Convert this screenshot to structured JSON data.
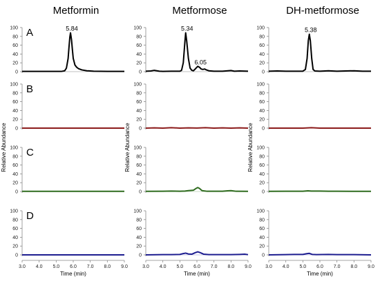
{
  "chart_data": {
    "type": "line",
    "columns": [
      "Metformin",
      "Metformose",
      "DH-metformose"
    ],
    "rows": [
      "A",
      "B",
      "C",
      "D"
    ],
    "ylabel": "Relative Abundance",
    "xlabel": "Time (min)",
    "xlim": [
      3.0,
      9.0
    ],
    "ylim": [
      0,
      100
    ],
    "x_ticks": [
      "3.0",
      "4.0",
      "5.0",
      "6.0",
      "7.0",
      "8.0",
      "9.0"
    ],
    "y_ticks": [
      "0",
      "20",
      "40",
      "60",
      "80",
      "100"
    ],
    "row_colors": [
      "#000000",
      "#8b1a1a",
      "#2e6b1e",
      "#1c1c8f"
    ],
    "baseline_colors": [
      "#000000",
      "#8b1a1a",
      "#2e6b1e",
      "#1c1c8f"
    ],
    "annotations": [
      {
        "row": 0,
        "col": 0,
        "label": "5.84",
        "x": 5.84,
        "y": 88
      },
      {
        "row": 0,
        "col": 1,
        "label": "5.34",
        "x": 5.34,
        "y": 88
      },
      {
        "row": 0,
        "col": 1,
        "label": "6.05",
        "x": 6.05,
        "y": 12
      },
      {
        "row": 0,
        "col": 2,
        "label": "5.38",
        "x": 5.38,
        "y": 85
      }
    ],
    "panels": [
      [
        {
          "x": [
            3.0,
            5.3,
            5.5,
            5.6,
            5.7,
            5.75,
            5.8,
            5.84,
            5.9,
            5.95,
            6.0,
            6.1,
            6.2,
            6.3,
            6.5,
            6.8,
            7.2,
            8.0,
            9.0
          ],
          "y": [
            0.5,
            0.5,
            2,
            8,
            30,
            55,
            78,
            88,
            72,
            50,
            30,
            15,
            10,
            7,
            4,
            2,
            1,
            0.5,
            0.5
          ]
        },
        {
          "x": [
            3.0,
            3.3,
            3.5,
            3.8,
            4.0,
            4.5,
            5.0,
            5.1,
            5.2,
            5.3,
            5.34,
            5.4,
            5.5,
            5.6,
            5.7,
            5.8,
            5.9,
            6.0,
            6.05,
            6.15,
            6.25,
            6.35,
            6.45,
            6.55,
            6.7,
            7.0,
            7.5,
            8.0,
            8.2,
            8.5,
            9.0
          ],
          "y": [
            1,
            1.5,
            3,
            1,
            0.5,
            1,
            1,
            3,
            20,
            70,
            88,
            70,
            30,
            8,
            3,
            2,
            6,
            10,
            12,
            10,
            6,
            5,
            6,
            4,
            2,
            1,
            1,
            2.5,
            1,
            1.5,
            1
          ]
        },
        {
          "x": [
            3.0,
            3.5,
            4.0,
            4.5,
            5.0,
            5.15,
            5.25,
            5.32,
            5.38,
            5.44,
            5.52,
            5.6,
            5.7,
            6.0,
            6.5,
            7.0,
            7.5,
            8.0,
            8.5,
            9.0
          ],
          "y": [
            1,
            1.5,
            1,
            1,
            1,
            5,
            30,
            70,
            85,
            70,
            30,
            5,
            1.5,
            1,
            2,
            1,
            1.5,
            2,
            1,
            1
          ]
        }
      ],
      [
        {
          "x": [
            3.0,
            9.0
          ],
          "y": [
            0,
            0
          ]
        },
        {
          "x": [
            3.0,
            3.5,
            4.0,
            4.5,
            5.0,
            5.5,
            6.0,
            6.5,
            7.0,
            7.5,
            8.0,
            8.5,
            9.0
          ],
          "y": [
            0,
            0.5,
            0,
            1,
            0,
            0.5,
            0.2,
            1,
            0,
            0.5,
            0,
            0.5,
            0
          ]
        },
        {
          "x": [
            3.0,
            4.0,
            5.0,
            5.5,
            6.0,
            7.0,
            8.0,
            9.0
          ],
          "y": [
            0,
            0,
            0,
            1,
            0,
            0,
            0,
            0
          ]
        }
      ],
      [
        {
          "x": [
            3.0,
            9.0
          ],
          "y": [
            0.3,
            0.3
          ]
        },
        {
          "x": [
            3.0,
            4.0,
            4.5,
            5.0,
            5.3,
            5.5,
            5.8,
            5.95,
            6.05,
            6.15,
            6.3,
            6.6,
            7.0,
            7.5,
            7.8,
            8.0,
            8.3,
            9.0
          ],
          "y": [
            0.3,
            0.5,
            1,
            0.5,
            1,
            2,
            3,
            7,
            9,
            7,
            2,
            0.5,
            0.5,
            0.5,
            1.5,
            2,
            0.5,
            0.3
          ]
        },
        {
          "x": [
            3.0,
            4.0,
            5.0,
            5.3,
            5.5,
            6.0,
            6.5,
            7.0,
            8.0,
            9.0
          ],
          "y": [
            0.3,
            0.5,
            0.5,
            1.5,
            1,
            1,
            0.5,
            0.5,
            0.3,
            0.3
          ]
        }
      ],
      [
        {
          "x": [
            3.0,
            9.0
          ],
          "y": [
            0,
            0
          ]
        },
        {
          "x": [
            3.0,
            4.0,
            4.5,
            5.0,
            5.2,
            5.34,
            5.5,
            5.7,
            5.9,
            6.05,
            6.2,
            6.4,
            6.7,
            7.0,
            8.0,
            8.5,
            8.8,
            9.0
          ],
          "y": [
            0,
            0.5,
            0.5,
            1,
            3,
            4,
            2,
            1.5,
            5,
            7,
            5,
            1.5,
            0.5,
            0.5,
            0.5,
            1,
            1.5,
            0.5
          ]
        },
        {
          "x": [
            3.0,
            4.0,
            4.5,
            5.0,
            5.2,
            5.38,
            5.55,
            5.8,
            6.5,
            7.0,
            8.0,
            9.0
          ],
          "y": [
            0,
            0.5,
            1,
            1,
            2.5,
            3.5,
            1,
            0.5,
            1,
            0.5,
            0.5,
            0
          ]
        }
      ]
    ]
  }
}
